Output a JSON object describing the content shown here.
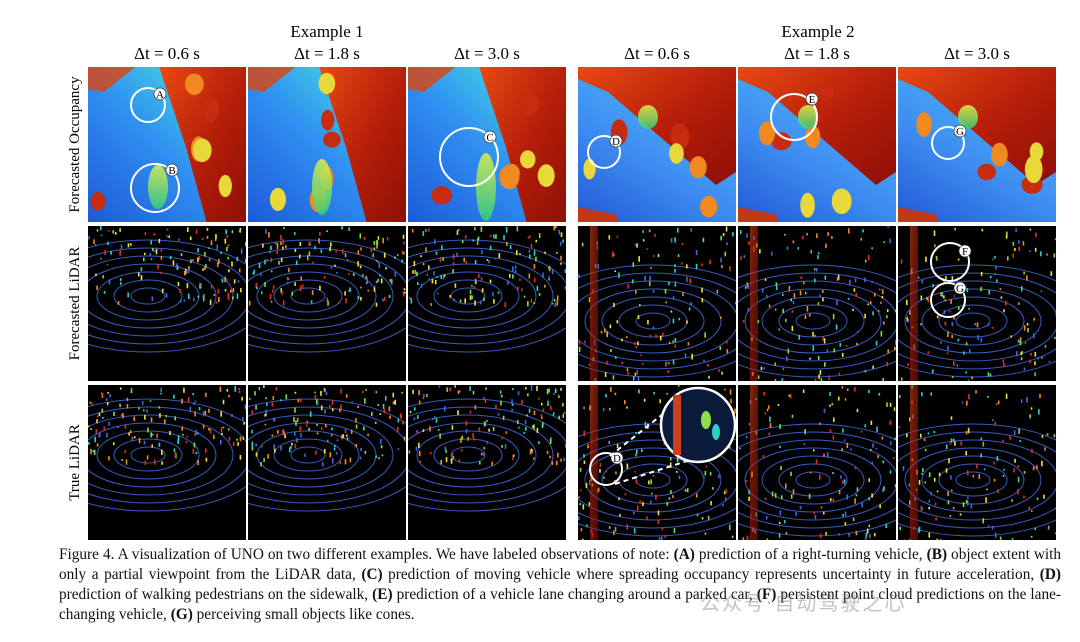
{
  "header": {
    "examples": [
      "Example 1",
      "Example 2"
    ],
    "time_labels": [
      "Δt = 0.6 s",
      "Δt = 1.8 s",
      "Δt = 3.0 s",
      "Δt = 0.6 s",
      "Δt = 1.8 s",
      "Δt = 3.0 s"
    ]
  },
  "rows": [
    "Forecasted Occupancy",
    "Forecasted LiDAR",
    "True LiDAR"
  ],
  "markers": [
    "A",
    "B",
    "C",
    "D",
    "E",
    "G",
    "F",
    "G",
    "D"
  ],
  "caption": [
    "Figure 4.  A visualization of UNO on two different examples.  We have labeled observations of note: ",
    "(A)",
    " prediction of a right-turning vehicle, ",
    "(B)",
    " object extent with only a partial viewpoint from the LiDAR data, ",
    "(C)",
    " prediction of moving vehicle where spreading occupancy represents uncertainty in future acceleration, ",
    "(D)",
    " prediction of walking pedestrians on the sidewalk, ",
    "(E)",
    " prediction of a vehicle lane changing around a parked car, ",
    "(F)",
    " persistent point cloud predictions on the lane-changing vehicle, ",
    "(G)",
    " perceiving small objects like cones."
  ],
  "watermark": "公众号·自动驾驶之心"
}
